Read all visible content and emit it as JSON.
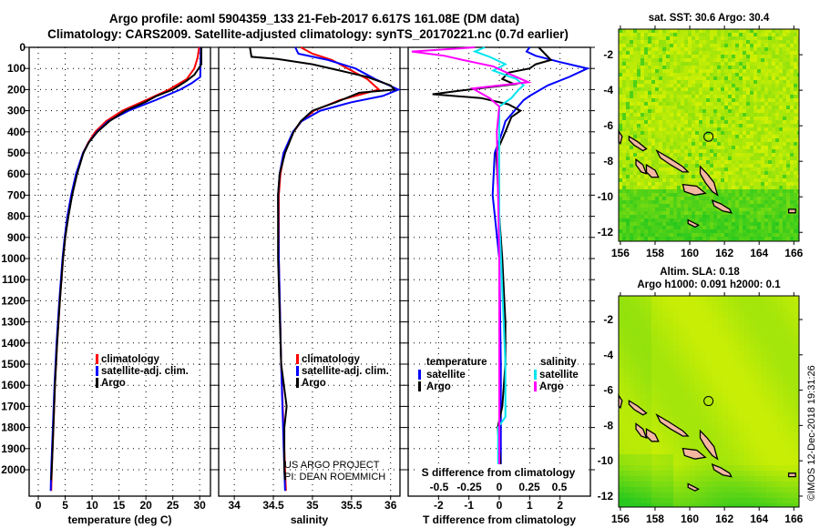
{
  "title_line1": "Argo profile: aoml 5904359_133 21-Feb-2017 6.617S 161.08E (DM data)",
  "title_line2": "Climatology: CARS2009. Satellite-adjusted climatology: synTS_20170221.nc (0.7d earlier)",
  "credit_line1": "US ARGO PROJECT",
  "credit_line2": "PI: DEAN ROEMMICH",
  "footer": "©IMOS 12-Dec-2018 19:31:26",
  "colors": {
    "climatology": "#ff0000",
    "satellite": "#0000ff",
    "argo": "#000000",
    "sal_satellite": "#00e5ee",
    "sal_argo": "#ff00ff"
  },
  "chart_data": [
    {
      "type": "line",
      "id": "temperature",
      "xlabel": "temperature (deg C)",
      "ylabel": "depth",
      "xlim": [
        -1.7,
        32
      ],
      "ylim": [
        2125,
        0
      ],
      "xticks": [
        0,
        5,
        10,
        15,
        20,
        25,
        30
      ],
      "yticks": [
        0,
        100,
        200,
        300,
        400,
        500,
        600,
        700,
        800,
        900,
        1000,
        1100,
        1200,
        1300,
        1400,
        1500,
        1600,
        1700,
        1800,
        1900,
        2000
      ],
      "legend": [
        "climatology",
        "satellite-adj. clim.",
        "Argo"
      ],
      "series": [
        {
          "name": "climatology",
          "color": "#ff0000",
          "points": [
            [
              0,
              29.9
            ],
            [
              50,
              29.6
            ],
            [
              100,
              29.0
            ],
            [
              150,
              27.6
            ],
            [
              200,
              24.3
            ],
            [
              250,
              20.0
            ],
            [
              300,
              15.6
            ],
            [
              350,
              12.6
            ],
            [
              400,
              10.6
            ],
            [
              450,
              9.3
            ],
            [
              500,
              8.3
            ],
            [
              600,
              7.1
            ],
            [
              700,
              6.2
            ],
            [
              800,
              5.5
            ],
            [
              900,
              5.0
            ],
            [
              1000,
              4.6
            ],
            [
              1200,
              4.0
            ],
            [
              1400,
              3.5
            ],
            [
              1600,
              3.1
            ],
            [
              1800,
              2.8
            ],
            [
              2000,
              2.5
            ],
            [
              2100,
              2.4
            ]
          ]
        },
        {
          "name": "satellite-adj. clim.",
          "color": "#0000ff",
          "points": [
            [
              0,
              30.2
            ],
            [
              140,
              30.1
            ],
            [
              170,
              28.5
            ],
            [
              200,
              26.4
            ],
            [
              250,
              21.8
            ],
            [
              300,
              16.8
            ],
            [
              350,
              13.0
            ],
            [
              400,
              10.9
            ],
            [
              450,
              9.4
            ],
            [
              500,
              8.3
            ],
            [
              600,
              7.0
            ],
            [
              700,
              6.1
            ],
            [
              800,
              5.4
            ],
            [
              900,
              4.9
            ],
            [
              1000,
              4.5
            ],
            [
              1200,
              3.9
            ],
            [
              1400,
              3.4
            ],
            [
              1600,
              3.0
            ],
            [
              1800,
              2.7
            ],
            [
              2000,
              2.4
            ],
            [
              2100,
              2.3
            ]
          ]
        },
        {
          "name": "Argo",
          "color": "#000000",
          "points": [
            [
              0,
              30.3
            ],
            [
              80,
              30.3
            ],
            [
              100,
              29.8
            ],
            [
              130,
              29.0
            ],
            [
              160,
              27.5
            ],
            [
              200,
              25.0
            ],
            [
              230,
              22.0
            ],
            [
              260,
              19.8
            ],
            [
              300,
              16.2
            ],
            [
              350,
              13.2
            ],
            [
              400,
              11.0
            ],
            [
              450,
              9.4
            ],
            [
              500,
              8.4
            ],
            [
              600,
              7.2
            ],
            [
              700,
              6.3
            ],
            [
              800,
              5.6
            ],
            [
              900,
              5.0
            ],
            [
              1000,
              4.6
            ],
            [
              1200,
              4.0
            ],
            [
              1400,
              3.5
            ],
            [
              1600,
              3.1
            ],
            [
              1800,
              2.8
            ],
            [
              2000,
              2.5
            ],
            [
              2050,
              2.4
            ]
          ]
        }
      ]
    },
    {
      "type": "line",
      "id": "salinity",
      "xlabel": "salinity",
      "ylabel": "depth",
      "xlim": [
        33.8,
        36.12
      ],
      "ylim": [
        2125,
        0
      ],
      "xticks": [
        34,
        34.5,
        35,
        35.5,
        36
      ],
      "legend": [
        "climatology",
        "satellite-adj. clim.",
        "Argo"
      ],
      "series": [
        {
          "name": "climatology",
          "color": "#ff0000",
          "points": [
            [
              0,
              34.85
            ],
            [
              30,
              35.0
            ],
            [
              60,
              35.25
            ],
            [
              100,
              35.45
            ],
            [
              150,
              35.7
            ],
            [
              200,
              35.85
            ],
            [
              220,
              35.65
            ],
            [
              250,
              35.35
            ],
            [
              300,
              35.02
            ],
            [
              350,
              34.86
            ],
            [
              400,
              34.76
            ],
            [
              500,
              34.64
            ],
            [
              600,
              34.59
            ],
            [
              700,
              34.57
            ],
            [
              1000,
              34.57
            ],
            [
              1500,
              34.6
            ],
            [
              2000,
              34.65
            ],
            [
              2100,
              34.66
            ]
          ]
        },
        {
          "name": "satellite-adj. clim.",
          "color": "#0000ff",
          "points": [
            [
              0,
              34.78
            ],
            [
              30,
              34.82
            ],
            [
              60,
              35.2
            ],
            [
              100,
              35.55
            ],
            [
              150,
              35.8
            ],
            [
              200,
              36.1
            ],
            [
              230,
              35.9
            ],
            [
              260,
              35.5
            ],
            [
              300,
              35.1
            ],
            [
              350,
              34.86
            ],
            [
              400,
              34.75
            ],
            [
              500,
              34.63
            ],
            [
              600,
              34.58
            ],
            [
              700,
              34.56
            ],
            [
              1000,
              34.57
            ],
            [
              1500,
              34.6
            ],
            [
              2000,
              34.64
            ],
            [
              2100,
              34.65
            ]
          ]
        },
        {
          "name": "Argo",
          "color": "#000000",
          "points": [
            [
              0,
              34.2
            ],
            [
              45,
              34.22
            ],
            [
              55,
              34.55
            ],
            [
              80,
              35.0
            ],
            [
              110,
              35.35
            ],
            [
              140,
              35.7
            ],
            [
              180,
              36.0
            ],
            [
              200,
              36.05
            ],
            [
              215,
              35.6
            ],
            [
              260,
              35.3
            ],
            [
              300,
              35.0
            ],
            [
              350,
              34.85
            ],
            [
              400,
              34.76
            ],
            [
              500,
              34.65
            ],
            [
              600,
              34.58
            ],
            [
              700,
              34.56
            ],
            [
              1000,
              34.56
            ],
            [
              1500,
              34.6
            ],
            [
              1700,
              34.67
            ],
            [
              1800,
              34.64
            ],
            [
              2000,
              34.64
            ],
            [
              2050,
              34.65
            ]
          ]
        }
      ]
    },
    {
      "type": "line",
      "id": "differences",
      "xlabel": "T difference from climatology",
      "x2label": "S difference from climatology",
      "xlim": [
        -3,
        3
      ],
      "x2lim": [
        -0.75,
        0.75
      ],
      "ylim": [
        2125,
        0
      ],
      "xticks": [
        -2,
        -1,
        0,
        1,
        2
      ],
      "x2ticks": [
        "-0.5",
        "-0.25",
        "0",
        "0.25",
        "0.5"
      ],
      "legend_temperature": {
        "title": "temperature",
        "items": [
          "satellite",
          "Argo"
        ]
      },
      "legend_salinity": {
        "title": "salinity",
        "items": [
          "satellite",
          "Argo"
        ]
      },
      "series": [
        {
          "name": "temperature satellite",
          "axis": "T",
          "color": "#0000ff",
          "points": [
            [
              0,
              1.0
            ],
            [
              20,
              0.9
            ],
            [
              40,
              1.2
            ],
            [
              70,
              2.0
            ],
            [
              100,
              2.9
            ],
            [
              140,
              2.3
            ],
            [
              180,
              1.6
            ],
            [
              230,
              1.0
            ],
            [
              250,
              0.8
            ],
            [
              300,
              0.5
            ],
            [
              350,
              0.2
            ],
            [
              400,
              0.1
            ],
            [
              500,
              -0.15
            ],
            [
              700,
              -0.22
            ],
            [
              1000,
              0.0
            ],
            [
              1500,
              0.05
            ],
            [
              2000,
              0.05
            ],
            [
              2100,
              0.05
            ]
          ]
        },
        {
          "name": "temperature Argo",
          "axis": "T",
          "color": "#000000",
          "points": [
            [
              0,
              1.3
            ],
            [
              30,
              1.5
            ],
            [
              60,
              1.7
            ],
            [
              80,
              1.2
            ],
            [
              100,
              1.0
            ],
            [
              120,
              0.3
            ],
            [
              150,
              0.1
            ],
            [
              175,
              0.5
            ],
            [
              205,
              -1.3
            ],
            [
              222,
              -2.2
            ],
            [
              240,
              -0.6
            ],
            [
              270,
              0.3
            ],
            [
              300,
              0.7
            ],
            [
              330,
              0.4
            ],
            [
              400,
              0.2
            ],
            [
              500,
              -0.1
            ],
            [
              800,
              0.0
            ],
            [
              1000,
              0.1
            ],
            [
              1300,
              0.2
            ],
            [
              1500,
              0.2
            ],
            [
              1700,
              0.1
            ],
            [
              1800,
              -0.05
            ],
            [
              2000,
              0.05
            ],
            [
              2100,
              0.05
            ]
          ]
        },
        {
          "name": "salinity satellite",
          "axis": "S",
          "color": "#00e5ee",
          "points": [
            [
              0,
              -0.12
            ],
            [
              20,
              -0.2
            ],
            [
              45,
              -0.08
            ],
            [
              80,
              0.05
            ],
            [
              110,
              -0.05
            ],
            [
              150,
              0.14
            ],
            [
              180,
              0.2
            ],
            [
              200,
              0.16
            ],
            [
              240,
              0.1
            ],
            [
              280,
              0.0
            ],
            [
              400,
              0.0
            ],
            [
              800,
              0.0
            ],
            [
              1500,
              0.05
            ],
            [
              1750,
              0.05
            ],
            [
              1800,
              -0.01
            ],
            [
              2000,
              -0.01
            ],
            [
              2100,
              -0.01
            ]
          ]
        },
        {
          "name": "salinity Argo",
          "axis": "S",
          "color": "#ff00ff",
          "points": [
            [
              0,
              -0.2
            ],
            [
              20,
              -0.72
            ],
            [
              40,
              -0.45
            ],
            [
              60,
              -0.3
            ],
            [
              90,
              -0.05
            ],
            [
              130,
              0.1
            ],
            [
              165,
              0.24
            ],
            [
              195,
              -0.22
            ],
            [
              240,
              -0.08
            ],
            [
              280,
              0.0
            ],
            [
              400,
              -0.02
            ],
            [
              1000,
              0.0
            ],
            [
              2000,
              0.0
            ],
            [
              2100,
              0.0
            ]
          ]
        }
      ]
    },
    {
      "type": "heatmap",
      "id": "sst-map",
      "title": "sat. SST: 30.6 Argo: 30.4",
      "xlim": [
        155.9,
        166.3
      ],
      "ylim": [
        -12.5,
        -0.56
      ],
      "xticks": [
        156,
        158,
        160,
        162,
        164,
        166
      ],
      "yticks": [
        -2,
        -4,
        -6,
        -8,
        -10,
        -12
      ],
      "argo_location": [
        161.08,
        -6.617
      ]
    },
    {
      "type": "heatmap",
      "id": "sla-map",
      "title_line1": "Altim. SLA: 0.18",
      "title_line2": "Argo h1000: 0.091 h2000: 0.1",
      "xlim": [
        155.9,
        166.3
      ],
      "ylim": [
        -12.62,
        -0.66
      ],
      "xticks": [
        156,
        158,
        160,
        162,
        164,
        166
      ],
      "yticks": [
        -2,
        -4,
        -6,
        -8,
        -10,
        -12
      ],
      "argo_location": [
        161.08,
        -6.617
      ]
    }
  ]
}
